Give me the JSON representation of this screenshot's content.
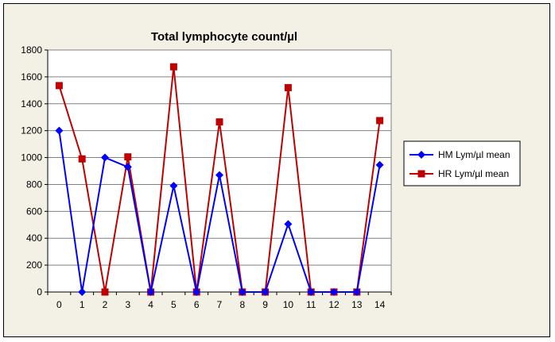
{
  "chart_data": {
    "type": "line",
    "title": "Total lymphocyte count/µl",
    "xlabel": "",
    "ylabel": "",
    "x": [
      0,
      1,
      2,
      3,
      4,
      5,
      6,
      7,
      8,
      9,
      10,
      11,
      12,
      13,
      14
    ],
    "ylim": [
      0,
      1800
    ],
    "yticks": [
      0,
      200,
      400,
      600,
      800,
      1000,
      1200,
      1400,
      1600,
      1800
    ],
    "grid": true,
    "legend": "right",
    "series": [
      {
        "name": "HM Lym/µl mean",
        "color": "#0000ff",
        "marker": "diamond",
        "values": [
          1200,
          0,
          1000,
          930,
          0,
          790,
          0,
          870,
          0,
          0,
          505,
          0,
          0,
          0,
          945
        ]
      },
      {
        "name": "HR Lym/µl mean",
        "color": "#c00000",
        "marker": "square",
        "values": [
          1535,
          990,
          0,
          1005,
          0,
          1675,
          0,
          1265,
          0,
          0,
          1520,
          0,
          0,
          0,
          1275
        ]
      }
    ]
  }
}
